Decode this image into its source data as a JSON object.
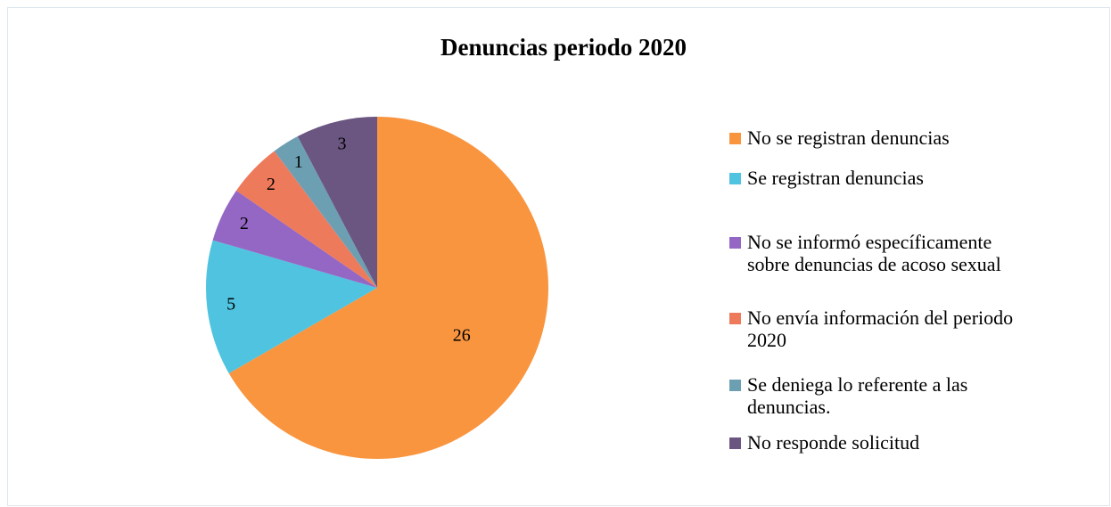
{
  "chart_data": {
    "type": "pie",
    "title": "Denuncias periodo 2020",
    "categories": [
      "No se registran denuncias",
      "Se registran denuncias",
      "No se informó específicamente sobre denuncias de acoso sexual",
      "No envía información del periodo 2020",
      "Se deniega lo referente a las denuncias.",
      "No responde solicitud"
    ],
    "values": [
      26,
      5,
      2,
      2,
      1,
      3
    ],
    "colors": [
      "#f9953f",
      "#4fc3df",
      "#9467c4",
      "#ee7a5c",
      "#6d9fb3",
      "#6a5680"
    ],
    "legend": "right"
  }
}
